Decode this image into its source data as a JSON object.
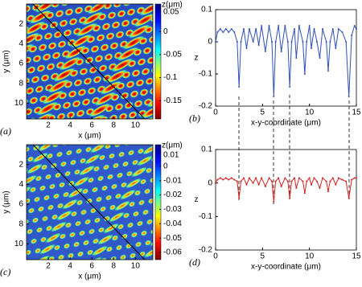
{
  "chart_data": [
    {
      "type": "heatmap",
      "panel_label": "(a)",
      "xlabel": "x  (μm)",
      "ylabel": "y  (μm)",
      "xlim": [
        0,
        11.6
      ],
      "ylim": [
        0,
        11.6
      ],
      "xticks": [
        2,
        4,
        6,
        8,
        10
      ],
      "yticks": [
        2,
        4,
        6,
        8,
        10
      ],
      "colorbar_label": "z(μm)",
      "clim": [
        -0.19,
        0.06
      ],
      "cticks": [
        0.05,
        0,
        -0.05,
        -0.1,
        -0.15
      ]
    },
    {
      "type": "line",
      "panel_label": "(b)",
      "xlabel": "x-y-coordinate  (μm)",
      "ylabel": "z",
      "xlim": [
        0,
        15
      ],
      "ylim": [
        -0.2,
        0.1
      ],
      "xticks": [
        0,
        5,
        10,
        15
      ],
      "yticks": [
        -0.2,
        -0.1,
        0,
        0.1
      ],
      "x": [
        0,
        0.2,
        0.5,
        0.8,
        1.1,
        1.4,
        1.7,
        2.0,
        2.3,
        2.5,
        2.7,
        3.0,
        3.3,
        3.6,
        4.0,
        4.3,
        4.6,
        4.9,
        5.3,
        5.7,
        6.0,
        6.2,
        6.4,
        6.7,
        7.0,
        7.4,
        7.7,
        7.9,
        8.1,
        8.4,
        8.6,
        8.9,
        9.3,
        9.5,
        9.7,
        10.0,
        10.2,
        10.5,
        10.8,
        11.1,
        11.4,
        11.8,
        12.0,
        12.2,
        12.5,
        12.8,
        13.1,
        13.5,
        13.9,
        14.2,
        14.5,
        14.8,
        15.0
      ],
      "series": [
        {
          "color": "#2f4fb8",
          "values": [
            0.0,
            0.03,
            0.04,
            0.03,
            0.04,
            0.03,
            0.04,
            0.03,
            0.0,
            -0.14,
            0.0,
            0.04,
            -0.02,
            0.04,
            0.0,
            0.04,
            -0.01,
            0.05,
            -0.03,
            0.05,
            0.0,
            -0.17,
            0.0,
            0.05,
            -0.03,
            0.05,
            0.0,
            -0.14,
            0.0,
            0.04,
            -0.05,
            0.05,
            0.0,
            -0.1,
            0.0,
            0.05,
            -0.02,
            0.04,
            0.0,
            -0.05,
            0.04,
            0.0,
            -0.09,
            0.0,
            0.04,
            -0.02,
            0.04,
            0.03,
            0.0,
            -0.17,
            0.02,
            0.05,
            0.04
          ]
        }
      ]
    },
    {
      "type": "heatmap",
      "panel_label": "(c)",
      "xlabel": "x  (μm)",
      "ylabel": "y  (μm)",
      "xlim": [
        0,
        11.6
      ],
      "ylim": [
        0,
        11.6
      ],
      "xticks": [
        2,
        4,
        6,
        8,
        10
      ],
      "yticks": [
        2,
        4,
        6,
        8,
        10
      ],
      "colorbar_label": "z(μm)",
      "clim": [
        -0.065,
        0.015
      ],
      "cticks": [
        0.01,
        0,
        -0.01,
        -0.02,
        -0.03,
        -0.04,
        -0.05,
        -0.06
      ]
    },
    {
      "type": "line",
      "panel_label": "(d)",
      "xlabel": "x-y-coordinate  (μm)",
      "ylabel": "z",
      "xlim": [
        0,
        15
      ],
      "ylim": [
        -0.2,
        0.1
      ],
      "xticks": [
        0,
        5,
        10,
        15
      ],
      "yticks": [
        -0.2,
        -0.1,
        0,
        0.1
      ],
      "x": [
        0,
        0.2,
        0.5,
        0.8,
        1.1,
        1.4,
        1.7,
        2.0,
        2.3,
        2.5,
        2.7,
        3.0,
        3.3,
        3.6,
        4.0,
        4.3,
        4.6,
        4.9,
        5.3,
        5.7,
        6.0,
        6.2,
        6.4,
        6.7,
        7.0,
        7.4,
        7.7,
        7.9,
        8.1,
        8.4,
        8.6,
        8.9,
        9.3,
        9.5,
        9.7,
        10.0,
        10.2,
        10.5,
        10.8,
        11.1,
        11.4,
        11.8,
        12.0,
        12.2,
        12.5,
        12.8,
        13.1,
        13.5,
        13.9,
        14.2,
        14.5,
        14.8,
        15.0
      ],
      "series": [
        {
          "color": "#d42020",
          "values": [
            0.0,
            0.01,
            0.015,
            0.01,
            0.015,
            0.01,
            0.015,
            0.01,
            0.005,
            -0.045,
            0.005,
            0.015,
            -0.005,
            0.015,
            0.0,
            0.015,
            -0.005,
            0.015,
            -0.01,
            0.015,
            0.005,
            -0.055,
            0.005,
            0.015,
            -0.01,
            0.015,
            0.005,
            -0.045,
            0.005,
            0.015,
            -0.015,
            0.015,
            0.005,
            -0.03,
            0.005,
            0.015,
            -0.005,
            0.015,
            0.005,
            -0.015,
            0.015,
            0.005,
            -0.025,
            0.005,
            0.015,
            -0.005,
            0.015,
            0.01,
            0.005,
            -0.045,
            0.01,
            0.015,
            0.015
          ]
        }
      ]
    }
  ]
}
